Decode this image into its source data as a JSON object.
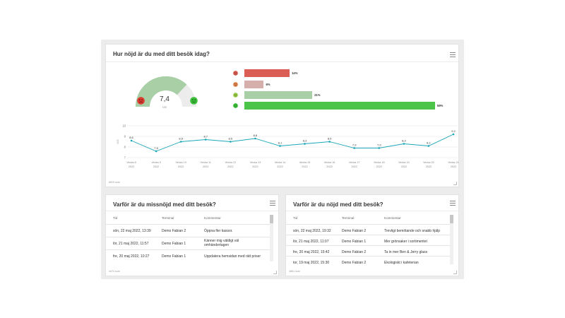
{
  "card_top": {
    "title": "Hur nöjd är du med ditt besök idag?",
    "answers": "6815 svar",
    "gauge": {
      "value": "7,4",
      "unit": "NSI",
      "fraction": 0.74,
      "color_fill": "#a8cfa5",
      "color_track": "#ececec"
    },
    "distribution": [
      {
        "icon": "very-unhappy-face-icon",
        "color": "#db5e55",
        "percent": 14,
        "label": "14%"
      },
      {
        "icon": "unhappy-face-icon",
        "color": "#d6aeab",
        "percent": 6,
        "label": "6%"
      },
      {
        "icon": "happy-face-icon",
        "color": "#a8cfa5",
        "percent": 21,
        "label": "21%"
      },
      {
        "icon": "very-happy-face-icon",
        "color": "#4cc44a",
        "percent": 59,
        "label": "59%"
      }
    ]
  },
  "chart_data": {
    "type": "line",
    "title": "",
    "xlabel": "",
    "ylabel": "NSI",
    "ylim": [
      7,
      10
    ],
    "yticks": [
      "10",
      "9",
      "8",
      "7"
    ],
    "categories": [
      "Vecka 8",
      "Vecka 9",
      "Vecka 10",
      "Vecka 11",
      "Vecka 12",
      "Vecka 13",
      "Vecka 14",
      "Vecka 15",
      "Vecka 16",
      "Vecka 17",
      "Vecka 18",
      "Vecka 19",
      "Vecka 20",
      "Vecka 21"
    ],
    "years": [
      "2022",
      "2022",
      "2022",
      "2022",
      "2022",
      "2022",
      "2022",
      "2022",
      "2022",
      "2022",
      "2022",
      "2022",
      "2022",
      "2022"
    ],
    "series": [
      {
        "name": "NSI",
        "color": "#1aa6b7",
        "values": [
          8.6,
          7.6,
          8.5,
          8.7,
          8.5,
          8.8,
          8.1,
          8.3,
          8.5,
          7.9,
          7.9,
          8.3,
          8.1,
          9.2
        ],
        "labels": [
          "8,6",
          "7,6",
          "8,5",
          "8,7",
          "8,5",
          "8,8",
          "8,1",
          "8,3",
          "8,5",
          "7,9",
          "7,9",
          "8,3",
          "8,1",
          "9,2"
        ]
      }
    ]
  },
  "card_left": {
    "title": "Varför är du missnöjd med ditt besök?",
    "answers": "4474 svar",
    "columns": [
      "Tid",
      "Terminal",
      "Kommentar"
    ],
    "rows": [
      [
        "sön, 22 maj 2022, 13:39",
        "Demo Fabian 2",
        "Öppna fler kassor."
      ],
      [
        "lör, 21 maj 2022, 11:57",
        "Demo Fabian 1",
        "Känner mig väldigt väl omhändertagen"
      ],
      [
        "fre, 20 maj 2022, 10:27",
        "Demo Fabian 1",
        "Uppdatera hemsidan med rätt priser"
      ]
    ]
  },
  "card_right": {
    "title": "Varför är du nöjd med ditt besök?",
    "answers": "4861 svar",
    "columns": [
      "Tid",
      "Terminal",
      "Kommentar"
    ],
    "rows": [
      [
        "sön, 22 maj 2022, 19:32",
        "Demo Fabian 2",
        "Trevligt bemötande och snabb hjälp"
      ],
      [
        "lör, 21 maj 2022, 11:07",
        "Demo Fabian 1",
        "Mer grönsaker i sortimentet"
      ],
      [
        "fre, 20 maj 2022, 15:42",
        "Demo Fabian 2",
        "Ta in mer Ben & Jerry glass"
      ],
      [
        "tor, 19 maj 2022, 15:30",
        "Demo Fabian 2",
        "Ekologiskt i kafeterian"
      ]
    ]
  }
}
